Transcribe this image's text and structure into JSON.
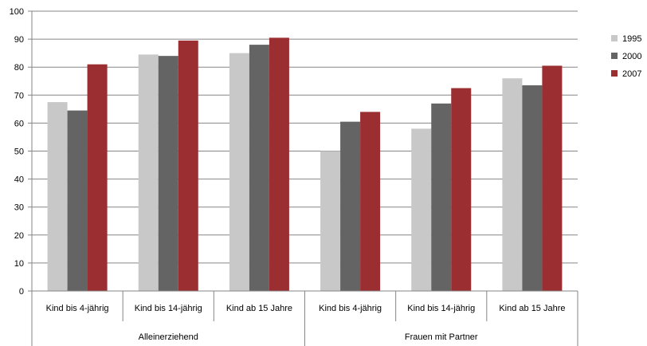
{
  "chart_data": {
    "type": "bar",
    "title": "",
    "xlabel": "",
    "ylabel": "",
    "ylim": [
      0,
      100
    ],
    "yticks": [
      0,
      10,
      20,
      30,
      40,
      50,
      60,
      70,
      80,
      90,
      100
    ],
    "grid": true,
    "legend_position": "right",
    "groups": [
      {
        "label": "Alleinerziehend",
        "categories": [
          "Kind bis 4-jährig",
          "Kind bis 14-jährig",
          "Kind ab 15 Jahre"
        ]
      },
      {
        "label": "Frauen mit Partner",
        "categories": [
          "Kind bis 4-jährig",
          "Kind bis 14-jährig",
          "Kind ab 15 Jahre"
        ]
      }
    ],
    "series": [
      {
        "name": "1995",
        "color": "#c8c8c8",
        "values": [
          67.5,
          84.5,
          85.0,
          50.0,
          58.0,
          76.0
        ]
      },
      {
        "name": "2000",
        "color": "#646464",
        "values": [
          64.5,
          84.0,
          88.0,
          60.5,
          67.0,
          73.5
        ]
      },
      {
        "name": "2007",
        "color": "#9a2e31",
        "values": [
          81.0,
          89.5,
          90.5,
          64.0,
          72.5,
          80.5
        ]
      }
    ]
  }
}
